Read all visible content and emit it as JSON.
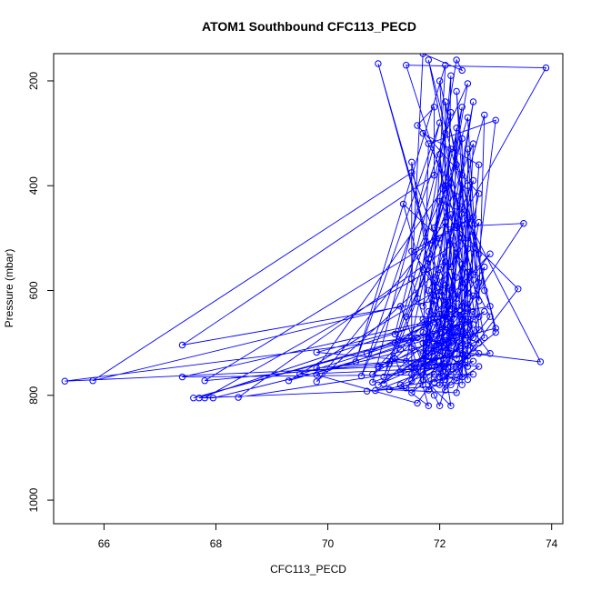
{
  "chart_data": {
    "type": "line",
    "title": "ATOM1 Southbound CFC113_PECD",
    "xlabel": "CFC113_PECD",
    "ylabel": "Pressure (mbar)",
    "xlim": [
      65.1,
      74.2
    ],
    "ylim": [
      1045,
      148
    ],
    "y_axis_inverted": true,
    "x_ticks": [
      66,
      68,
      70,
      72,
      74
    ],
    "y_ticks": [
      200,
      400,
      600,
      800,
      1000
    ],
    "series_color": "#0000ff",
    "marker": "open-circle",
    "grid": false,
    "legend": "none",
    "series": [
      {
        "values_x_y": [
          [
            65.3,
            773
          ],
          [
            65.8,
            772
          ],
          [
            67.4,
            704
          ],
          [
            67.4,
            765
          ],
          [
            67.6,
            805
          ],
          [
            67.7,
            805
          ],
          [
            67.8,
            805
          ],
          [
            67.8,
            772
          ],
          [
            67.95,
            805
          ],
          [
            68.4,
            804
          ],
          [
            69.3,
            772
          ],
          [
            69.5,
            760
          ],
          [
            69.8,
            774
          ],
          [
            69.8,
            718
          ],
          [
            69.8,
            748
          ],
          [
            69.8,
            761
          ],
          [
            70.5,
            736
          ],
          [
            70.6,
            763
          ],
          [
            70.7,
            792
          ],
          [
            70.7,
            720
          ],
          [
            70.8,
            775
          ],
          [
            70.8,
            760
          ],
          [
            70.85,
            791
          ],
          [
            70.9,
            780
          ],
          [
            70.9,
            745
          ],
          [
            70.9,
            167
          ],
          [
            71.0,
            778
          ],
          [
            71.0,
            765
          ],
          [
            71.1,
            740
          ],
          [
            71.1,
            789
          ],
          [
            71.2,
            683
          ],
          [
            71.2,
            730
          ],
          [
            71.2,
            700
          ],
          [
            71.3,
            712
          ],
          [
            71.3,
            755
          ],
          [
            71.3,
            780
          ],
          [
            71.3,
            630
          ],
          [
            71.35,
            435
          ],
          [
            71.4,
            170
          ],
          [
            71.4,
            650
          ],
          [
            71.4,
            786
          ],
          [
            71.4,
            735
          ],
          [
            71.5,
            795
          ],
          [
            71.5,
            772
          ],
          [
            71.5,
            760
          ],
          [
            71.5,
            745
          ],
          [
            71.5,
            710
          ],
          [
            71.5,
            690
          ],
          [
            71.5,
            578
          ],
          [
            71.5,
            375
          ],
          [
            71.5,
            355
          ],
          [
            71.5,
            525
          ],
          [
            71.6,
            815
          ],
          [
            71.6,
            690
          ],
          [
            71.6,
            615
          ],
          [
            71.6,
            285
          ],
          [
            71.7,
            780
          ],
          [
            71.7,
            770
          ],
          [
            71.7,
            755
          ],
          [
            71.7,
            735
          ],
          [
            71.7,
            720
          ],
          [
            71.7,
            700
          ],
          [
            71.7,
            680
          ],
          [
            71.7,
            655
          ],
          [
            71.7,
            630
          ],
          [
            71.7,
            560
          ],
          [
            71.7,
            300
          ],
          [
            71.7,
            148
          ],
          [
            71.8,
            820
          ],
          [
            71.8,
            790
          ],
          [
            71.8,
            745
          ],
          [
            71.8,
            725
          ],
          [
            71.8,
            710
          ],
          [
            71.8,
            690
          ],
          [
            71.8,
            670
          ],
          [
            71.8,
            640
          ],
          [
            71.8,
            600
          ],
          [
            71.8,
            540
          ],
          [
            71.8,
            320
          ],
          [
            71.8,
            160
          ],
          [
            71.9,
            800
          ],
          [
            71.9,
            775
          ],
          [
            71.9,
            760
          ],
          [
            71.9,
            735
          ],
          [
            71.9,
            715
          ],
          [
            71.9,
            700
          ],
          [
            71.9,
            660
          ],
          [
            71.9,
            620
          ],
          [
            71.9,
            580
          ],
          [
            71.9,
            480
          ],
          [
            71.9,
            380
          ],
          [
            71.9,
            250
          ],
          [
            72.0,
            820
          ],
          [
            72.0,
            780
          ],
          [
            72.0,
            765
          ],
          [
            72.0,
            748
          ],
          [
            72.0,
            725
          ],
          [
            72.0,
            705
          ],
          [
            72.0,
            690
          ],
          [
            72.0,
            670
          ],
          [
            72.0,
            645
          ],
          [
            72.0,
            610
          ],
          [
            72.0,
            560
          ],
          [
            72.0,
            500
          ],
          [
            72.0,
            430
          ],
          [
            72.0,
            340
          ],
          [
            72.0,
            280
          ],
          [
            72.0,
            200
          ],
          [
            72.1,
            790
          ],
          [
            72.1,
            770
          ],
          [
            72.1,
            755
          ],
          [
            72.1,
            740
          ],
          [
            72.1,
            715
          ],
          [
            72.1,
            695
          ],
          [
            72.1,
            675
          ],
          [
            72.1,
            650
          ],
          [
            72.1,
            625
          ],
          [
            72.1,
            590
          ],
          [
            72.1,
            545
          ],
          [
            72.1,
            470
          ],
          [
            72.1,
            400
          ],
          [
            72.1,
            300
          ],
          [
            72.1,
            240
          ],
          [
            72.1,
            170
          ],
          [
            72.2,
            820
          ],
          [
            72.2,
            780
          ],
          [
            72.2,
            760
          ],
          [
            72.2,
            745
          ],
          [
            72.2,
            720
          ],
          [
            72.2,
            700
          ],
          [
            72.2,
            680
          ],
          [
            72.2,
            660
          ],
          [
            72.2,
            635
          ],
          [
            72.2,
            600
          ],
          [
            72.2,
            555
          ],
          [
            72.2,
            505
          ],
          [
            72.2,
            455
          ],
          [
            72.2,
            395
          ],
          [
            72.2,
            330
          ],
          [
            72.2,
            260
          ],
          [
            72.2,
            190
          ],
          [
            72.3,
            795
          ],
          [
            72.3,
            772
          ],
          [
            72.3,
            750
          ],
          [
            72.3,
            730
          ],
          [
            72.3,
            710
          ],
          [
            72.3,
            690
          ],
          [
            72.3,
            670
          ],
          [
            72.3,
            645
          ],
          [
            72.3,
            615
          ],
          [
            72.3,
            575
          ],
          [
            72.3,
            530
          ],
          [
            72.3,
            480
          ],
          [
            72.3,
            420
          ],
          [
            72.3,
            360
          ],
          [
            72.3,
            290
          ],
          [
            72.3,
            220
          ],
          [
            72.3,
            160
          ],
          [
            72.4,
            780
          ],
          [
            72.4,
            765
          ],
          [
            72.4,
            740
          ],
          [
            72.4,
            720
          ],
          [
            72.4,
            700
          ],
          [
            72.4,
            678
          ],
          [
            72.4,
            655
          ],
          [
            72.4,
            630
          ],
          [
            72.4,
            595
          ],
          [
            72.4,
            550
          ],
          [
            72.4,
            500
          ],
          [
            72.4,
            440
          ],
          [
            72.4,
            380
          ],
          [
            72.4,
            310
          ],
          [
            72.4,
            250
          ],
          [
            72.4,
            180
          ],
          [
            72.5,
            770
          ],
          [
            72.5,
            745
          ],
          [
            72.5,
            725
          ],
          [
            72.5,
            705
          ],
          [
            72.5,
            685
          ],
          [
            72.5,
            660
          ],
          [
            72.5,
            635
          ],
          [
            72.5,
            605
          ],
          [
            72.5,
            565
          ],
          [
            72.5,
            520
          ],
          [
            72.5,
            465
          ],
          [
            72.5,
            400
          ],
          [
            72.5,
            330
          ],
          [
            72.5,
            270
          ],
          [
            72.5,
            205
          ],
          [
            72.6,
            760
          ],
          [
            72.6,
            735
          ],
          [
            72.6,
            710
          ],
          [
            72.6,
            690
          ],
          [
            72.6,
            665
          ],
          [
            72.6,
            640
          ],
          [
            72.6,
            610
          ],
          [
            72.6,
            570
          ],
          [
            72.6,
            520
          ],
          [
            72.6,
            460
          ],
          [
            72.6,
            390
          ],
          [
            72.6,
            320
          ],
          [
            72.6,
            240
          ],
          [
            72.7,
            745
          ],
          [
            72.7,
            720
          ],
          [
            72.7,
            700
          ],
          [
            72.7,
            675
          ],
          [
            72.7,
            650
          ],
          [
            72.7,
            620
          ],
          [
            72.7,
            585
          ],
          [
            72.7,
            530
          ],
          [
            72.7,
            470
          ],
          [
            72.7,
            415
          ],
          [
            72.7,
            360
          ],
          [
            72.8,
            690
          ],
          [
            72.8,
            640
          ],
          [
            72.8,
            600
          ],
          [
            72.8,
            555
          ],
          [
            72.8,
            265
          ],
          [
            72.9,
            720
          ],
          [
            72.9,
            650
          ],
          [
            72.9,
            630
          ],
          [
            72.9,
            530
          ],
          [
            73.0,
            680
          ],
          [
            73.0,
            672
          ],
          [
            73.0,
            275
          ],
          [
            73.4,
            597
          ],
          [
            73.5,
            472
          ],
          [
            73.8,
            736
          ],
          [
            73.9,
            175
          ]
        ]
      }
    ]
  }
}
